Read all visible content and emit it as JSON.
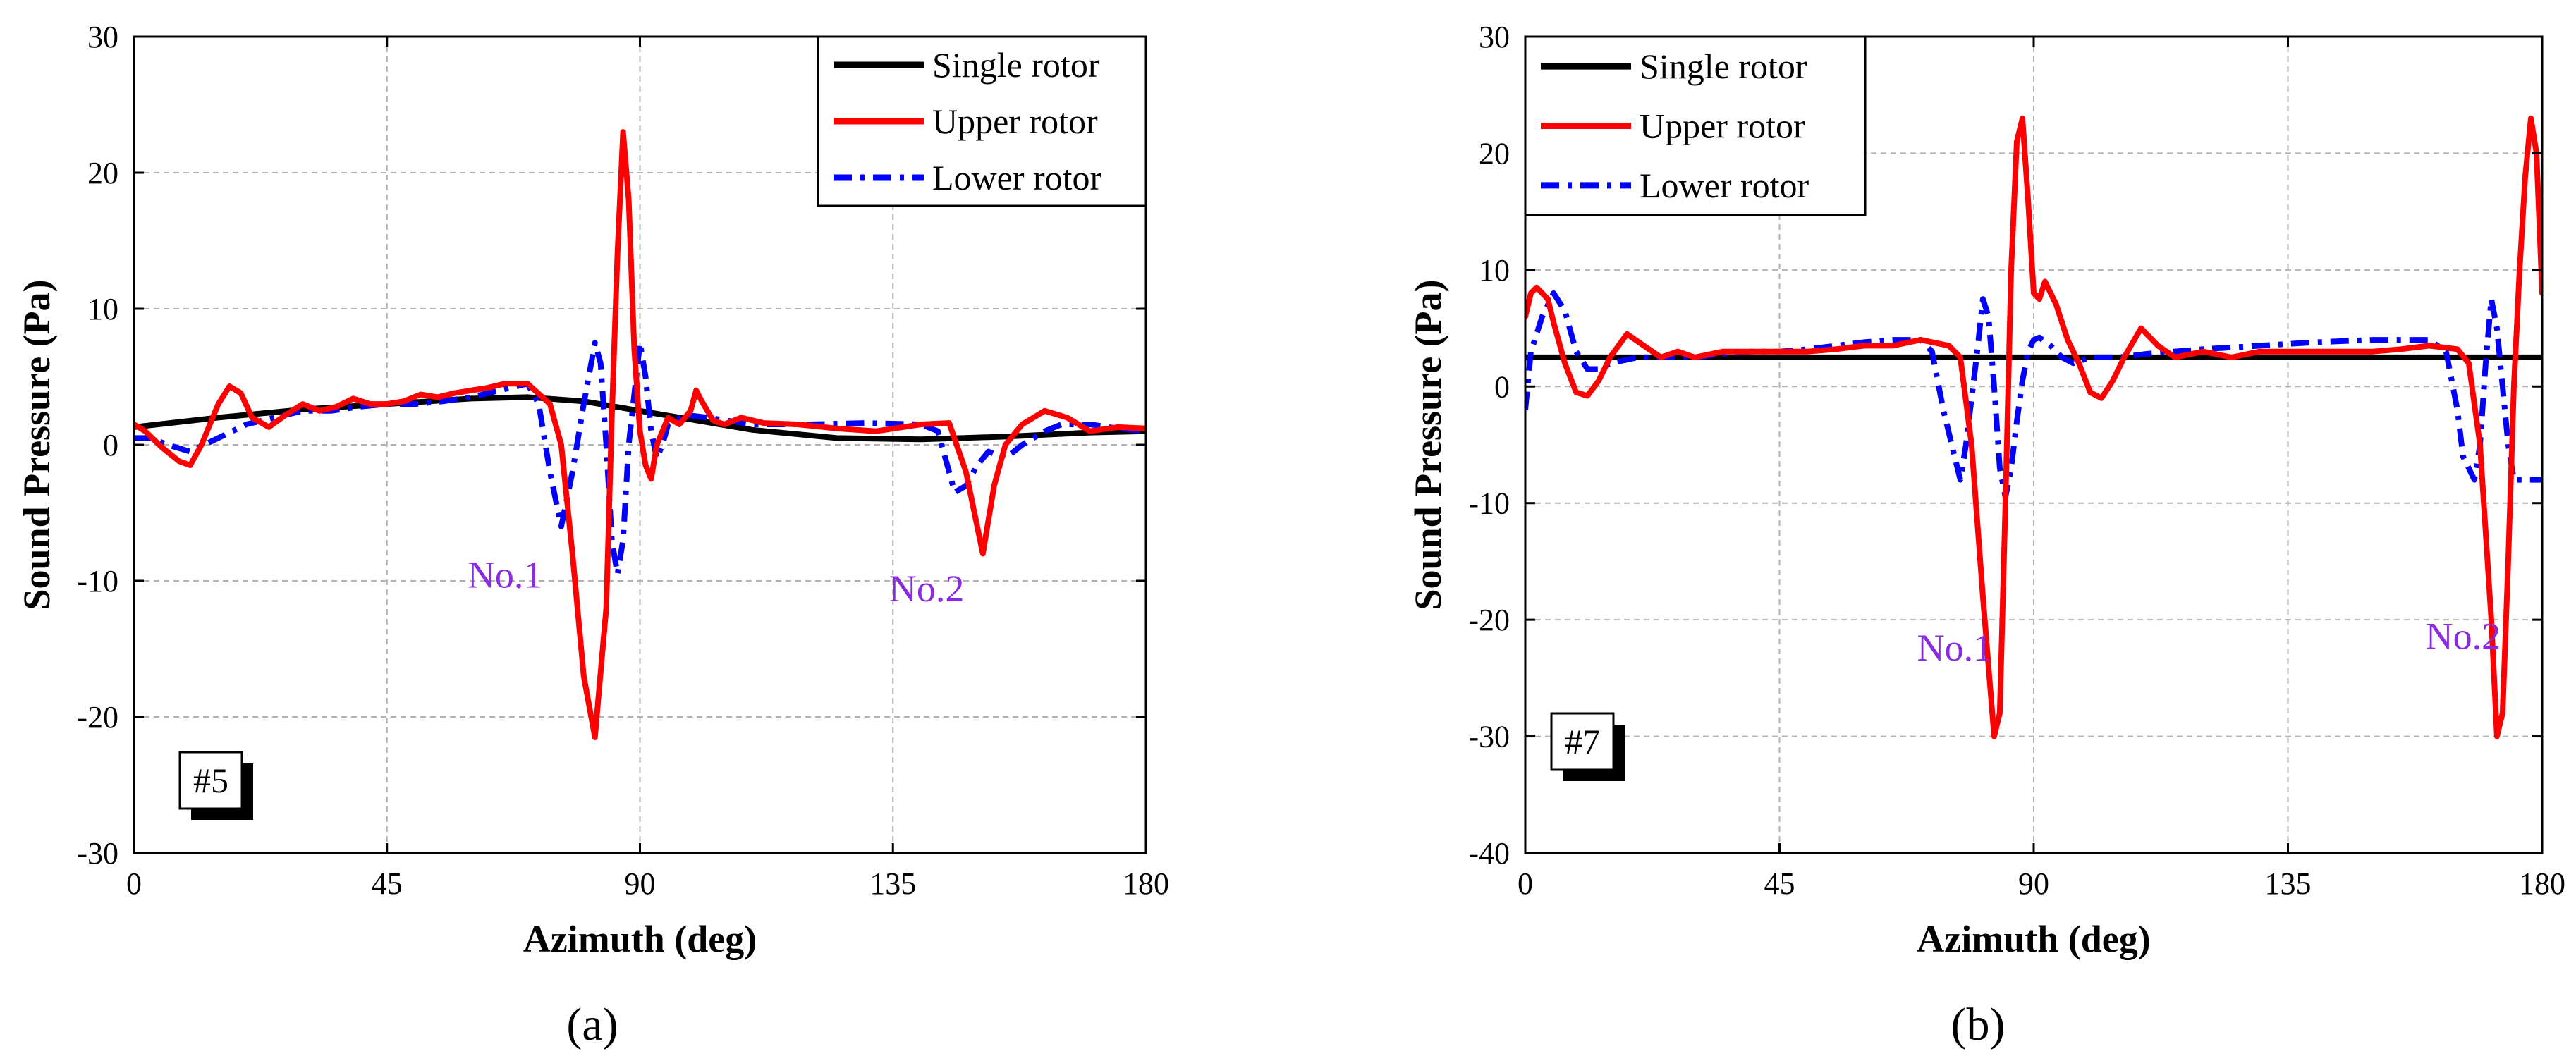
{
  "colors": {
    "single": "#000000",
    "upper": "#ff0000",
    "lower": "#0000ff",
    "annotation": "#8a2be2",
    "grid": "#b3b3b3",
    "axis": "#000000"
  },
  "chart_data": [
    {
      "type": "line",
      "panel_label": "(a)",
      "tag": "#5",
      "xlabel": "Azimuth (deg)",
      "ylabel": "Sound Pressure (Pa)",
      "xlim": [
        0,
        180
      ],
      "ylim": [
        -30,
        30
      ],
      "xticks": [
        0,
        45,
        90,
        135,
        180
      ],
      "yticks": [
        -30,
        -20,
        -10,
        0,
        10,
        20,
        30
      ],
      "grid": true,
      "legend_position": "top-right",
      "annotations": [
        {
          "text": "No.1",
          "x": 66,
          "y": -10.5
        },
        {
          "text": "No.2",
          "x": 141,
          "y": -11.5
        }
      ],
      "series": [
        {
          "name": "Single rotor",
          "color": "#000000",
          "dash": "solid",
          "x": [
            0,
            15,
            30,
            45,
            60,
            70,
            80,
            90,
            100,
            110,
            125,
            140,
            155,
            170,
            180
          ],
          "y": [
            1.3,
            2.0,
            2.6,
            3.0,
            3.4,
            3.5,
            3.2,
            2.5,
            1.8,
            1.1,
            0.5,
            0.4,
            0.6,
            0.9,
            1.0
          ]
        },
        {
          "name": "Upper rotor",
          "color": "#ff0000",
          "dash": "solid",
          "x": [
            0,
            2,
            5,
            8,
            10,
            12,
            15,
            17,
            19,
            21,
            24,
            27,
            30,
            33,
            36,
            39,
            42,
            45,
            48,
            51,
            54,
            57,
            60,
            63,
            66,
            70,
            74,
            76,
            78,
            80,
            82,
            84,
            85,
            86,
            87,
            88,
            89,
            90,
            91,
            92,
            93,
            95,
            97,
            99,
            100,
            101,
            103,
            105,
            108,
            112,
            118,
            125,
            132,
            140,
            145,
            148,
            150,
            151,
            153,
            155,
            158,
            162,
            166,
            170,
            175,
            180
          ],
          "y": [
            1.5,
            1.0,
            -0.2,
            -1.2,
            -1.5,
            0,
            3.0,
            4.3,
            3.8,
            2.0,
            1.3,
            2.2,
            3.0,
            2.5,
            2.8,
            3.4,
            3.0,
            3.0,
            3.2,
            3.7,
            3.5,
            3.8,
            4.0,
            4.2,
            4.5,
            4.5,
            3.0,
            0,
            -8.0,
            -17.0,
            -21.5,
            -12.0,
            2.0,
            14.0,
            23.0,
            18.0,
            7.0,
            1.0,
            -1.5,
            -2.5,
            0,
            2.0,
            1.5,
            2.5,
            4.0,
            3.2,
            1.8,
            1.5,
            2.0,
            1.6,
            1.5,
            1.2,
            1.0,
            1.5,
            1.6,
            -2.0,
            -6.0,
            -8.0,
            -3.0,
            0,
            1.5,
            2.5,
            2.0,
            1.0,
            1.3,
            1.2
          ]
        },
        {
          "name": "Lower rotor",
          "color": "#0000ff",
          "dash": "dashdot",
          "x": [
            0,
            3,
            6,
            10,
            15,
            20,
            25,
            30,
            35,
            40,
            45,
            50,
            55,
            60,
            65,
            70,
            72,
            74,
            76,
            78,
            80,
            82,
            83,
            84,
            85,
            86,
            87,
            88,
            90,
            91,
            92,
            93,
            94,
            95,
            98,
            102,
            110,
            120,
            130,
            140,
            143,
            145,
            146,
            148,
            150,
            152,
            155,
            158,
            162,
            165,
            170,
            175,
            180
          ],
          "y": [
            0.5,
            0.5,
            0,
            -0.5,
            0.5,
            1.5,
            2.0,
            2.5,
            2.5,
            2.8,
            3.0,
            3.0,
            3.2,
            3.5,
            4.0,
            4.5,
            3.0,
            -2.0,
            -6.0,
            -2.0,
            3.0,
            7.5,
            6.0,
            0,
            -7.0,
            -9.5,
            -7.0,
            0,
            7.5,
            5.0,
            1.0,
            -1.0,
            0,
            1.5,
            2.2,
            2.0,
            1.5,
            1.5,
            1.6,
            1.5,
            1.0,
            -2.0,
            -3.5,
            -3.0,
            -1.5,
            -0.5,
            -1.0,
            0,
            1.0,
            1.5,
            1.5,
            1.2,
            1.0
          ]
        }
      ]
    },
    {
      "type": "line",
      "panel_label": "(b)",
      "tag": "#7",
      "xlabel": "Azimuth (deg)",
      "ylabel": "Sound Pressure (Pa)",
      "xlim": [
        0,
        180
      ],
      "ylim": [
        -40,
        30
      ],
      "xticks": [
        0,
        45,
        90,
        135,
        180
      ],
      "yticks": [
        -40,
        -30,
        -20,
        -10,
        0,
        10,
        20,
        30
      ],
      "grid": true,
      "legend_position": "top-left",
      "annotations": [
        {
          "text": "No.1",
          "x": 76,
          "y": -23.5
        },
        {
          "text": "No.2",
          "x": 166,
          "y": -22.5
        }
      ],
      "series": [
        {
          "name": "Single rotor",
          "color": "#000000",
          "dash": "solid",
          "x": [
            0,
            180
          ],
          "y": [
            2.5,
            2.5
          ]
        },
        {
          "name": "Upper rotor",
          "color": "#ff0000",
          "dash": "solid",
          "x": [
            0,
            1,
            2,
            4,
            5,
            7,
            9,
            11,
            13,
            15,
            18,
            21,
            24,
            27,
            30,
            35,
            40,
            45,
            50,
            55,
            60,
            65,
            70,
            75,
            77,
            79,
            81,
            83,
            84,
            85,
            86,
            87,
            88,
            89,
            90,
            91,
            92,
            94,
            96,
            98,
            100,
            102,
            104,
            106,
            109,
            112,
            115,
            120,
            125,
            130,
            135,
            140,
            145,
            150,
            155,
            160,
            165,
            167,
            169,
            171,
            172,
            173,
            174,
            175,
            176,
            177,
            178,
            179,
            180
          ],
          "y": [
            6.0,
            8.0,
            8.5,
            7.5,
            5.5,
            2.0,
            -0.5,
            -0.8,
            0.5,
            2.5,
            4.5,
            3.5,
            2.5,
            3.0,
            2.5,
            3.0,
            3.0,
            3.0,
            3.0,
            3.2,
            3.5,
            3.5,
            4.0,
            3.5,
            2.5,
            -5.0,
            -18.0,
            -30.0,
            -28.0,
            -10.0,
            10.0,
            21.0,
            23.0,
            16.0,
            8.0,
            7.5,
            9.0,
            7.0,
            4.0,
            2.0,
            -0.5,
            -1.0,
            0.5,
            2.5,
            5.0,
            3.5,
            2.5,
            3.0,
            2.5,
            3.0,
            3.0,
            3.0,
            3.0,
            3.0,
            3.2,
            3.5,
            3.2,
            2.0,
            -5.0,
            -20.0,
            -30.0,
            -28.0,
            -15.0,
            0.0,
            10.0,
            18.0,
            23.0,
            20.0,
            8.0
          ]
        },
        {
          "name": "Lower rotor",
          "color": "#0000ff",
          "dash": "dashdot",
          "x": [
            0,
            1,
            3,
            5,
            7,
            9,
            11,
            13,
            15,
            20,
            25,
            30,
            35,
            40,
            45,
            50,
            55,
            60,
            65,
            70,
            72,
            74,
            76,
            77,
            78,
            80,
            81,
            82,
            83,
            84,
            85,
            86,
            87,
            88,
            89,
            90,
            91,
            93,
            95,
            97,
            100,
            103,
            105,
            110,
            120,
            130,
            140,
            150,
            160,
            163,
            165,
            166,
            168,
            169,
            170,
            171,
            172,
            173,
            174,
            175,
            176,
            178,
            180
          ],
          "y": [
            -2.0,
            3.0,
            6.0,
            8.0,
            6.5,
            3.0,
            1.5,
            1.5,
            2.0,
            2.5,
            2.5,
            2.5,
            2.8,
            3.0,
            3.0,
            3.2,
            3.5,
            3.8,
            4.0,
            4.0,
            3.0,
            -2.0,
            -6.0,
            -8.0,
            -5.0,
            3.0,
            7.5,
            6.0,
            0.0,
            -7.0,
            -9.5,
            -7.0,
            -3.0,
            0.5,
            3.0,
            4.0,
            4.2,
            3.5,
            2.5,
            2.0,
            2.5,
            2.5,
            2.5,
            2.8,
            3.2,
            3.5,
            3.8,
            4.0,
            4.0,
            3.0,
            -2.0,
            -6.0,
            -8.0,
            -5.0,
            2.0,
            7.5,
            5.0,
            0.0,
            -5.0,
            -8.0,
            -8.0,
            -8.0,
            -8.0
          ]
        }
      ]
    }
  ]
}
